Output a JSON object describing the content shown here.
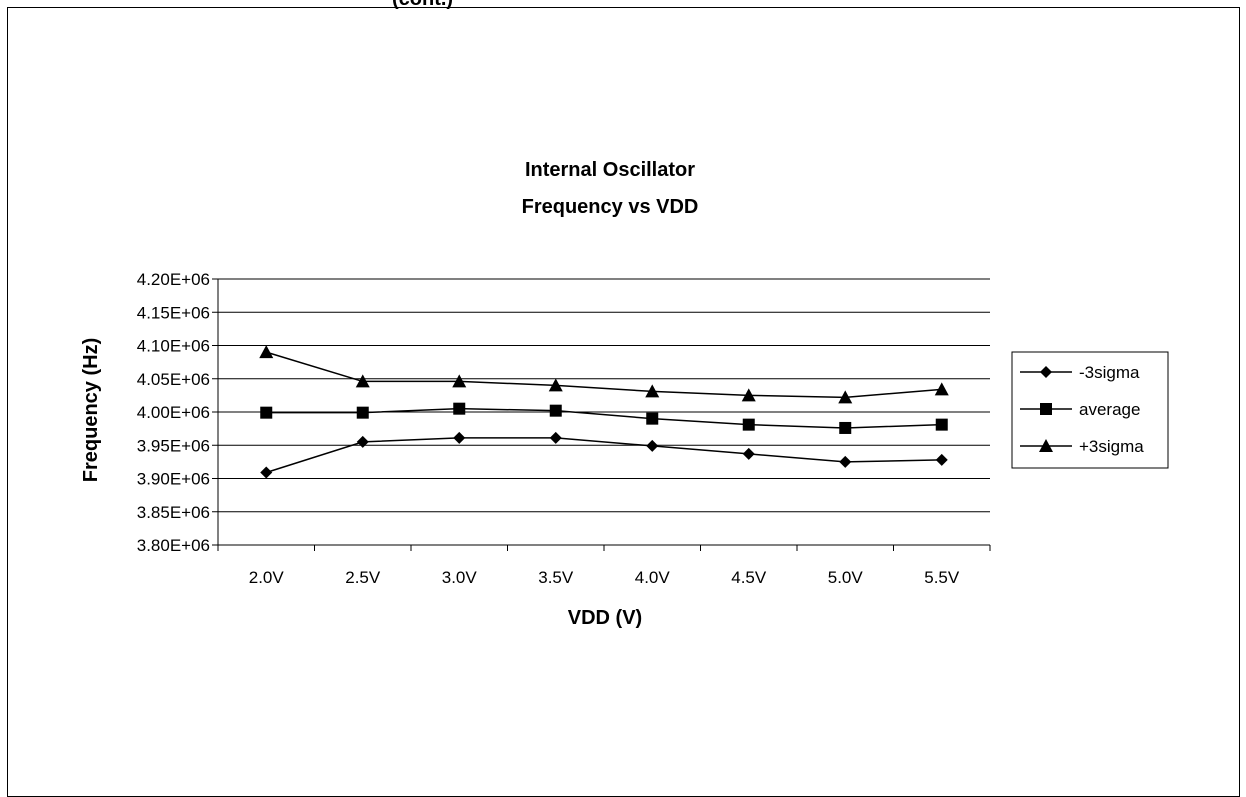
{
  "header_fragment": "(cont.)",
  "chart_data": {
    "type": "line",
    "title_lines": [
      "Internal Oscillator",
      "Frequency vs VDD"
    ],
    "xlabel": "VDD (V)",
    "ylabel": "Frequency (Hz)",
    "categories": [
      "2.0V",
      "2.5V",
      "3.0V",
      "3.5V",
      "4.0V",
      "4.5V",
      "5.0V",
      "5.5V"
    ],
    "ylim": [
      3800000.0,
      4200000.0
    ],
    "ytick_step": 50000,
    "ytick_labels": [
      "3.80E+06",
      "3.85E+06",
      "3.90E+06",
      "3.95E+06",
      "4.00E+06",
      "4.05E+06",
      "4.10E+06",
      "4.15E+06",
      "4.20E+06"
    ],
    "grid": true,
    "legend_position": "right",
    "series": [
      {
        "name": "-3sigma",
        "marker": "diamond",
        "values": [
          3909000.0,
          3955000.0,
          3961000.0,
          3961000.0,
          3949000.0,
          3937000.0,
          3925000.0,
          3928000.0
        ]
      },
      {
        "name": "average",
        "marker": "square",
        "values": [
          3999000.0,
          3999000.0,
          4005000.0,
          4002000.0,
          3990000.0,
          3981000.0,
          3976000.0,
          3981000.0
        ]
      },
      {
        "name": "+3sigma",
        "marker": "triangle",
        "values": [
          4090000.0,
          4046000.0,
          4046000.0,
          4040000.0,
          4031000.0,
          4025000.0,
          4022000.0,
          4034000.0
        ]
      }
    ],
    "colors": {
      "line": "#000000",
      "grid": "#000000"
    }
  }
}
